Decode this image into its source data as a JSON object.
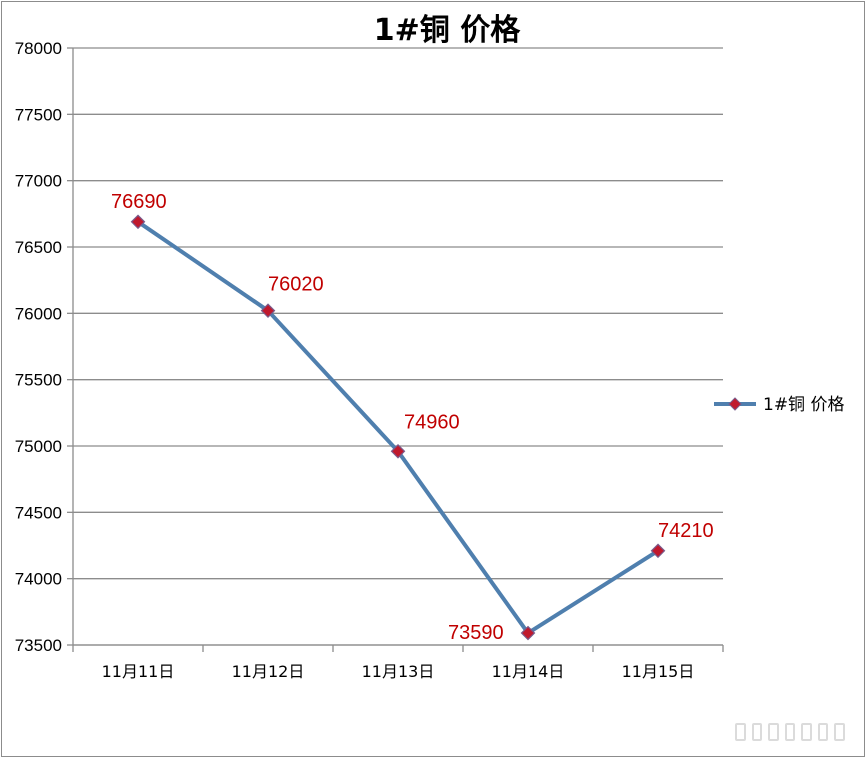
{
  "chart_data": {
    "type": "line",
    "title": "1#铜 价格",
    "xlabel": "",
    "ylabel": "",
    "categories": [
      "11月11日",
      "11月12日",
      "11月13日",
      "11月14日",
      "11月15日"
    ],
    "series": [
      {
        "name": "1#铜 价格",
        "values": [
          76690,
          76020,
          74960,
          73590,
          74210
        ]
      }
    ],
    "ylim": [
      73500,
      78000
    ],
    "yticks": [
      73500,
      74000,
      74500,
      75000,
      75500,
      76000,
      76500,
      77000,
      77500,
      78000
    ],
    "grid": true,
    "legend": "right",
    "data_labels": true,
    "colors": {
      "line": "#4f7fae",
      "marker": "#c0192d",
      "label": "#c00000",
      "grid": "#8c8c8c"
    }
  }
}
